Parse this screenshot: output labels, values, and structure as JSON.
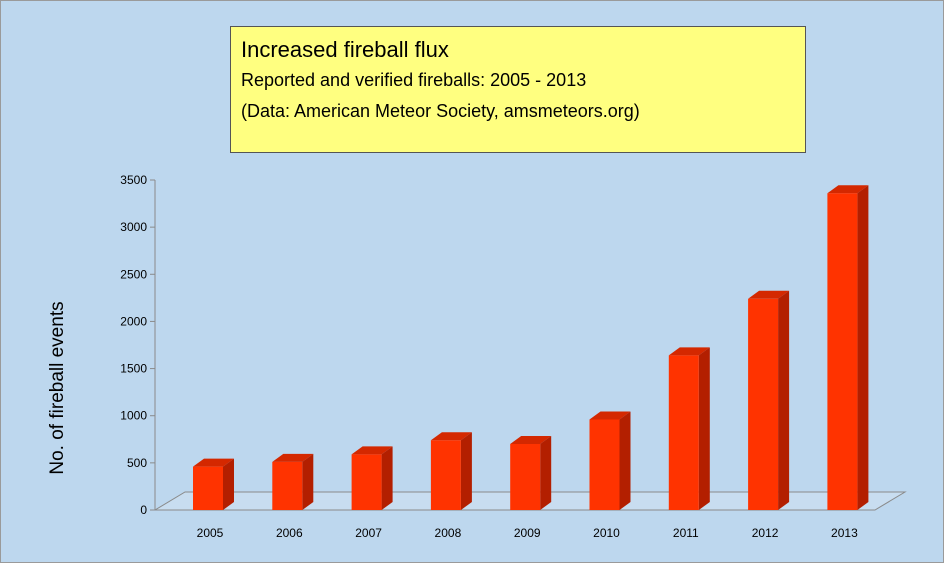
{
  "chart_data": {
    "type": "bar",
    "title": "Increased fireball flux",
    "subtitle": "Reported and verified fireballs: 2005 - 2013",
    "source": "(Data: American Meteor Society, amsmeteors.org)",
    "ylabel": "No. of fireball events",
    "xlabel": "",
    "categories": [
      "2005",
      "2006",
      "2007",
      "2008",
      "2009",
      "2010",
      "2011",
      "2012",
      "2013"
    ],
    "values": [
      460,
      510,
      590,
      740,
      700,
      960,
      1640,
      2240,
      3360
    ],
    "ylim": [
      0,
      3500
    ],
    "yticks": [
      0,
      500,
      1000,
      1500,
      2000,
      2500,
      3000,
      3500
    ],
    "grid": false,
    "legend": "none",
    "bar_style": "3d",
    "colors": {
      "bar_front": "#ff3300",
      "bar_side": "#b31f00",
      "bar_top": "#d42800",
      "background": "#bdd7ee",
      "title_box": "#ffff80"
    }
  }
}
